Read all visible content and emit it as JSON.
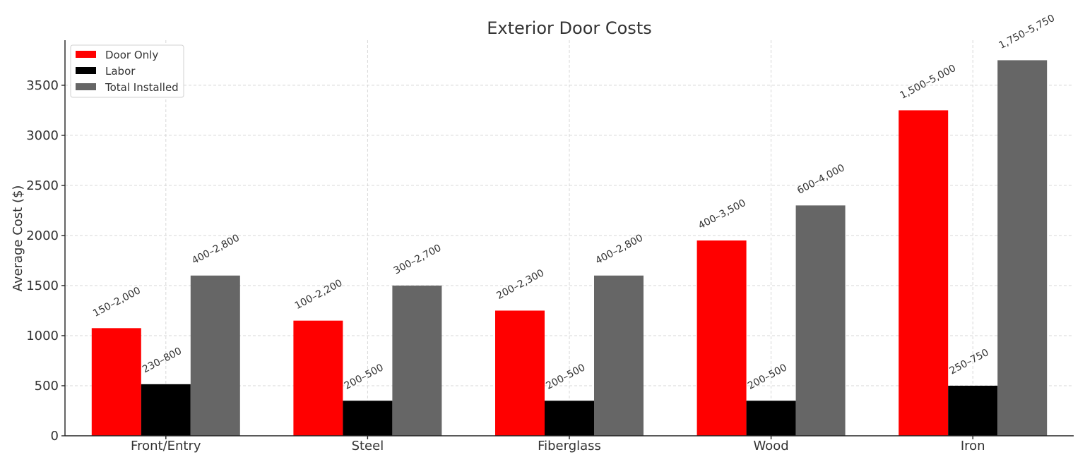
{
  "chart_data": {
    "type": "bar",
    "title": "Exterior Door Costs",
    "xlabel": "",
    "ylabel": "Average Cost ($)",
    "categories": [
      "Front/Entry",
      "Steel",
      "Fiberglass",
      "Wood",
      "Iron"
    ],
    "ylim": [
      0,
      3950
    ],
    "yticks": [
      0,
      500,
      1000,
      1500,
      2000,
      2500,
      3000,
      3500
    ],
    "grid": true,
    "legend_position": "top-left",
    "series": [
      {
        "name": "Door Only",
        "color": "#ff0000",
        "values": [
          1075,
          1150,
          1250,
          1950,
          3250
        ],
        "labels": [
          "150–2,000",
          "100–2,200",
          "200–2,300",
          "400–3,500",
          "1,500–5,000"
        ]
      },
      {
        "name": "Labor",
        "color": "#000000",
        "values": [
          515,
          350,
          350,
          350,
          500
        ],
        "labels": [
          "230–800",
          "200–500",
          "200–500",
          "200–500",
          "250–750"
        ]
      },
      {
        "name": "Total Installed",
        "color": "#666666",
        "values": [
          1600,
          1500,
          1600,
          2300,
          3750
        ],
        "labels": [
          "400–2,800",
          "300–2,700",
          "400–2,800",
          "600–4,000",
          "1,750–5,750"
        ]
      }
    ]
  }
}
